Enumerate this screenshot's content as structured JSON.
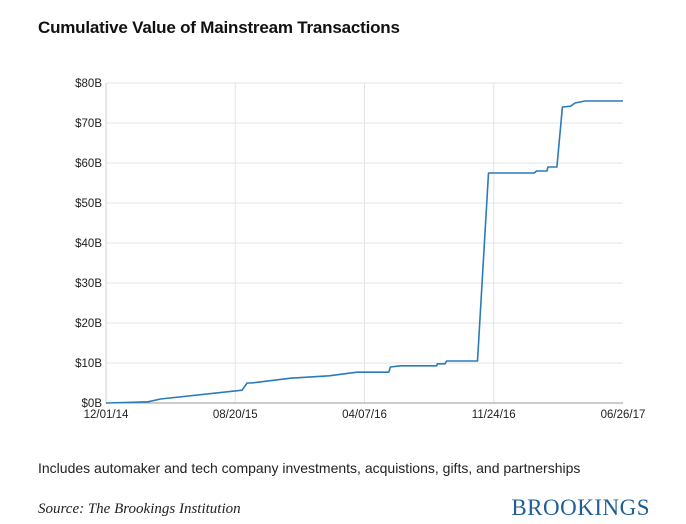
{
  "chart_data": {
    "type": "line",
    "title": "Cumulative Value of Mainstream Transactions",
    "xlabel": "",
    "ylabel": "",
    "x_tick_labels": [
      "12/01/14",
      "08/20/15",
      "04/07/16",
      "11/24/16",
      "06/26/17"
    ],
    "y_tick_labels": [
      "$0B",
      "$10B",
      "$20B",
      "$30B",
      "$40B",
      "$50B",
      "$60B",
      "$70B",
      "$80B"
    ],
    "y_ticks": [
      0,
      10,
      20,
      30,
      40,
      50,
      60,
      70,
      80
    ],
    "ylim": [
      0,
      80
    ],
    "xlim": [
      "2014-12-01",
      "2017-06-26"
    ],
    "grid": true,
    "legend": "none",
    "line_color": "#2b7bb9",
    "series": [
      {
        "x": [
          "2014-12-01",
          "2015-02-15",
          "2015-03-10",
          "2015-08-05",
          "2015-08-14",
          "2015-08-22",
          "2015-11-01",
          "2016-01-10",
          "2016-02-29",
          "2016-04-10",
          "2016-04-27",
          "2016-04-30",
          "2016-05-18",
          "2016-05-27",
          "2016-07-23",
          "2016-07-24",
          "2016-08-07",
          "2016-08-10",
          "2016-10-05",
          "2016-10-25",
          "2016-12-15",
          "2016-12-20",
          "2017-01-16",
          "2017-01-20",
          "2017-02-08",
          "2017-02-10",
          "2017-02-26",
          "2017-03-08",
          "2017-03-23",
          "2017-03-31",
          "2017-04-18",
          "2017-06-26"
        ],
        "y": [
          0,
          0.3,
          1.0,
          3.2,
          5.0,
          5.0,
          6.2,
          6.8,
          7.7,
          7.7,
          7.7,
          9.0,
          9.3,
          9.3,
          9.3,
          9.8,
          9.8,
          10.5,
          10.5,
          57.5,
          57.5,
          57.5,
          57.5,
          58.0,
          58.0,
          59.0,
          59.0,
          74.0,
          74.2,
          75.0,
          75.5,
          75.5
        ]
      }
    ]
  },
  "note": "Includes automaker and tech company investments, acquistions, gifts, and partnerships",
  "source": "Source: The Brookings Institution",
  "brand": "BROOKINGS",
  "brand_color": "#1f5f95"
}
